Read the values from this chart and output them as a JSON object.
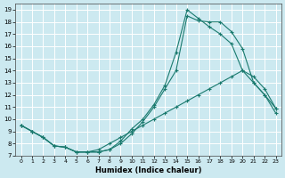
{
  "xlabel": "Humidex (Indice chaleur)",
  "bg_color": "#cce9f0",
  "line_color": "#1a7a6e",
  "grid_color": "#ffffff",
  "xlim": [
    -0.5,
    23.5
  ],
  "ylim": [
    7,
    19.5
  ],
  "yticks": [
    7,
    8,
    9,
    10,
    11,
    12,
    13,
    14,
    15,
    16,
    17,
    18,
    19
  ],
  "xticks": [
    0,
    1,
    2,
    3,
    4,
    5,
    6,
    7,
    8,
    9,
    10,
    11,
    12,
    13,
    14,
    15,
    16,
    17,
    18,
    19,
    20,
    21,
    22,
    23
  ],
  "curve1_x": [
    0,
    1,
    2,
    3,
    4,
    5,
    6,
    7,
    8,
    9,
    10,
    11,
    12,
    13,
    14,
    15,
    16,
    17,
    18,
    19,
    20,
    21,
    22,
    23
  ],
  "curve1_y": [
    9.5,
    9.0,
    8.5,
    7.8,
    7.7,
    7.3,
    7.3,
    7.3,
    7.5,
    8.0,
    8.8,
    9.8,
    11.0,
    12.5,
    14.0,
    18.5,
    18.1,
    18.0,
    18.0,
    17.2,
    15.8,
    13.0,
    12.0,
    10.5
  ],
  "curve2_x": [
    0,
    1,
    2,
    3,
    4,
    5,
    6,
    7,
    8,
    9,
    10,
    11,
    12,
    13,
    14,
    15,
    16,
    17,
    18,
    19,
    20,
    21,
    22,
    23
  ],
  "curve2_y": [
    9.5,
    9.0,
    8.5,
    7.8,
    7.7,
    7.3,
    7.3,
    7.3,
    7.5,
    8.2,
    9.2,
    10.0,
    11.2,
    12.8,
    15.5,
    19.0,
    18.3,
    17.6,
    17.0,
    16.2,
    14.0,
    13.0,
    12.0,
    10.9
  ],
  "curve3_x": [
    0,
    1,
    2,
    3,
    4,
    5,
    6,
    7,
    8,
    9,
    10,
    11,
    12,
    13,
    14,
    15,
    16,
    17,
    18,
    19,
    20,
    21,
    22,
    23
  ],
  "curve3_y": [
    9.5,
    9.0,
    8.5,
    7.8,
    7.7,
    7.3,
    7.3,
    7.5,
    8.0,
    8.5,
    9.0,
    9.5,
    10.0,
    10.5,
    11.0,
    11.5,
    12.0,
    12.5,
    13.0,
    13.5,
    14.0,
    13.5,
    12.5,
    10.9
  ]
}
